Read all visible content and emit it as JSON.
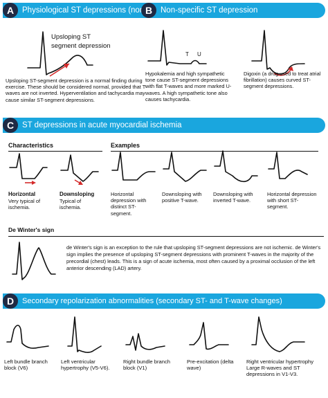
{
  "sections": {
    "A": {
      "letter": "A",
      "title": "Physiological ST depressions (normal)",
      "annotation": [
        "Upsloping ST",
        "segment depression"
      ],
      "text": "Upsloping ST-segment depression is a normal finding during exercise. These should be considered normal, provided that T-waves are not inverted. Hyperventilation and tachycardia may cause similar ST-segment depressions."
    },
    "B": {
      "letter": "B",
      "title": "Non-specific ST depression",
      "t_label": "T",
      "u_label": "U",
      "text1": "Hypokalemia and high sympathetic tone cause ST-segment depressions with flat T-waves and more marked U-waves. A high sympathetic tone also causes tachycardia.",
      "text2": "Digoxin (a drug used to treat atrial fibrillation) causes curved ST-segment depressions."
    },
    "C": {
      "letter": "C",
      "title": "ST depressions in acute myocardial ischemia",
      "characteristics_header": "Characteristics",
      "examples_header": "Examples",
      "char1_bold": "Horizontal",
      "char1_text": "Very typical of ischemia.",
      "char2_bold": "Downsloping",
      "char2_text": "Typical of ischemia.",
      "examples": [
        "Horizontal depression with distinct ST-segment.",
        "Downsloping with positive T-wave.",
        "Downsloping with inverted T-wave.",
        "Horizontal depression with short ST-segment."
      ],
      "dewinter_header": "De Winter's sign",
      "dewinter_text": "de Winter's sign is an exception to the rule that upsloping ST-segment depressions are not ischemic. de Winter's sign implies the presence of upsloping ST-segment depressions with prominent T-waves in the majority of the precordial (chest) leads. This is a sign of acute ischemia, most often caused by a proximal occlusion of the left anterior descending (LAD) artery."
    },
    "D": {
      "letter": "D",
      "title": "Secondary repolarization abnormalities (secondary ST- and T-wave changes)",
      "items": [
        "Left bundle branch block (V6)",
        "Left ventricular hypertrophy (V5-V6).",
        "Right bundle branch block (V1)",
        "Pre-excitation (delta wave)",
        "Right ventricular hypertrophy Large R-waves and ST depressions in V1-V3."
      ]
    }
  },
  "colors": {
    "header_bar": "#1aa6de",
    "badge": "#1f2a44",
    "arrow": "#d42a2a"
  }
}
